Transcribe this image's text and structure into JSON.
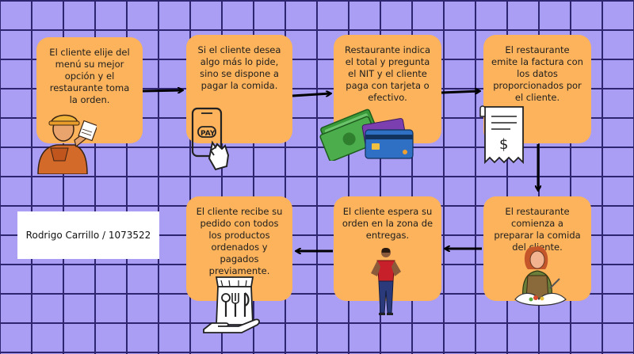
{
  "steps": [
    "El cliente elije del menú su mejor opción y el restaurante toma la orden.",
    "Si el cliente desea algo más lo pide, sino se dispone a pagar la comida.",
    "Restaurante indica el total y pregunta el NIT y el cliente paga con tarjeta o efectivo.",
    "El restaurante emite la factura con los datos proporcionados por el cliente.",
    "El restaurante comienza a preparar la comida del cliente.",
    "El cliente espera su orden en la zona de entregas.",
    "El cliente recibe su pedido con todos los productos ordenados y pagados previamente."
  ],
  "author_label": "Rodrigo Carrillo / 1073522",
  "pay_text": "PAY",
  "receipt_symbol": "$",
  "colors": {
    "background": "#a99ef3",
    "grid_lines": "#2d2570",
    "card": "#fdb35b"
  },
  "icons": [
    "waiter-illustration",
    "phone-pay-icon",
    "cash-and-cards-illustration",
    "receipt-icon",
    "chef-illustration",
    "waiting-person-illustration",
    "takeaway-bag-icon"
  ]
}
